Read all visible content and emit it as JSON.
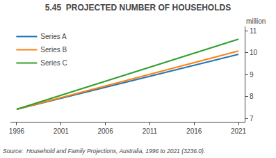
{
  "chart_data": {
    "type": "line",
    "title": "5.45  PROJECTED NUMBER OF HOUSEHOLDS",
    "ylabel": "million",
    "source": "Source:  Household and Family Projections, Australia, 1996 to 2021 (3236.0).",
    "x": [
      1996,
      2021
    ],
    "series": [
      {
        "name": "Series A",
        "values": [
          7.42,
          9.93
        ]
      },
      {
        "name": "Series B",
        "values": [
          7.42,
          10.08
        ]
      },
      {
        "name": "Series C",
        "values": [
          7.42,
          10.62
        ]
      }
    ],
    "xlim": [
      1995.3,
      2021.7
    ],
    "xticks": [
      1996,
      2001,
      2006,
      2011,
      2016,
      2021
    ],
    "ylim": [
      6.85,
      11.2
    ],
    "yticks": [
      7,
      8,
      9,
      10,
      11
    ],
    "grid": false,
    "legend": "upper left"
  }
}
